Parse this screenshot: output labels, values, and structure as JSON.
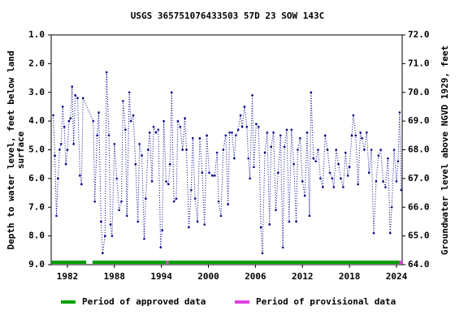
{
  "chart_data": {
    "type": "line",
    "title": "USGS 365751076433503 57D 23 SOW 143C",
    "ylabel": [
      "Depth to water level, feet below land",
      "surface"
    ],
    "y2label": "Groundwater level above NGVD 1929, feet",
    "xlim": [
      1979.93,
      2024.73
    ],
    "xticks": [
      1982,
      1988,
      1994,
      2000,
      2006,
      2012,
      2018,
      2024
    ],
    "ylim": [
      1.0,
      9.0
    ],
    "y_inverted": true,
    "yticks": [
      {
        "value": 1,
        "label": "1.0"
      },
      {
        "value": 2,
        "label": "2.0"
      },
      {
        "value": 3,
        "label": "3.0"
      },
      {
        "value": 4,
        "label": "4.0"
      },
      {
        "value": 5,
        "label": "5.0"
      },
      {
        "value": 6,
        "label": "6.0"
      },
      {
        "value": 7,
        "label": "7.0"
      },
      {
        "value": 8,
        "label": "8.0"
      },
      {
        "value": 9,
        "label": "9.0"
      }
    ],
    "y2lim": [
      64.0,
      72.0
    ],
    "y2ticks": [
      {
        "value": 64,
        "label": "64.0"
      },
      {
        "value": 65,
        "label": "65.0"
      },
      {
        "value": 66,
        "label": "66.0"
      },
      {
        "value": 67,
        "label": "67.0"
      },
      {
        "value": 68,
        "label": "68.0"
      },
      {
        "value": 69,
        "label": "69.0"
      },
      {
        "value": 70,
        "label": "70.0"
      },
      {
        "value": 71,
        "label": "71.0"
      },
      {
        "value": 72,
        "label": "72.0"
      }
    ],
    "series": [
      {
        "color": "#00008b",
        "x": [
          1980.2,
          1980.4,
          1980.6,
          1980.8,
          1981.0,
          1981.2,
          1981.4,
          1981.6,
          1981.8,
          1982.0,
          1982.2,
          1982.4,
          1982.6,
          1982.8,
          1983.0,
          1983.3,
          1983.6,
          1983.8,
          1984.0,
          1985.3,
          1985.5,
          1985.8,
          1986.0,
          1986.3,
          1986.5,
          1986.8,
          1987.0,
          1987.3,
          1987.5,
          1987.7,
          1988.0,
          1988.3,
          1988.6,
          1988.9,
          1989.1,
          1989.4,
          1989.6,
          1989.9,
          1990.1,
          1990.4,
          1990.7,
          1991.0,
          1991.2,
          1991.5,
          1991.8,
          1992.0,
          1992.3,
          1992.5,
          1992.8,
          1993.0,
          1993.3,
          1993.6,
          1993.9,
          1994.1,
          1994.3,
          1994.6,
          1994.9,
          1995.1,
          1995.3,
          1995.6,
          1995.9,
          1996.1,
          1996.4,
          1996.7,
          1997.0,
          1997.2,
          1997.5,
          1997.8,
          1998.0,
          1998.3,
          1998.6,
          1998.9,
          1999.2,
          1999.5,
          1999.8,
          2000.1,
          2000.5,
          2000.8,
          2001.1,
          2001.3,
          2001.6,
          2001.9,
          2002.2,
          2002.5,
          2002.7,
          2003.0,
          2003.3,
          2003.5,
          2003.8,
          2004.1,
          2004.3,
          2004.6,
          2004.9,
          2005.1,
          2005.3,
          2005.6,
          2005.8,
          2006.1,
          2006.4,
          2006.7,
          2006.9,
          2007.2,
          2007.5,
          2007.8,
          2008.0,
          2008.3,
          2008.6,
          2008.9,
          2009.2,
          2009.5,
          2009.7,
          2010.0,
          2010.3,
          2010.6,
          2010.9,
          2011.2,
          2011.4,
          2011.7,
          2012.0,
          2012.3,
          2012.6,
          2012.9,
          2013.1,
          2013.4,
          2013.7,
          2014.0,
          2014.3,
          2014.6,
          2014.9,
          2015.2,
          2015.5,
          2015.8,
          2016.0,
          2016.3,
          2016.6,
          2016.9,
          2017.2,
          2017.5,
          2017.8,
          2018.0,
          2018.3,
          2018.5,
          2018.8,
          2019.1,
          2019.4,
          2019.6,
          2019.9,
          2020.2,
          2020.5,
          2020.8,
          2021.1,
          2021.4,
          2021.7,
          2022.0,
          2022.3,
          2022.6,
          2022.9,
          2023.2,
          2023.4,
          2023.7,
          2024.0,
          2024.2,
          2024.4,
          2024.6
        ],
        "values": [
          3.8,
          5.2,
          7.3,
          6.0,
          5.0,
          4.8,
          3.5,
          4.2,
          5.5,
          5.0,
          4.0,
          3.9,
          2.8,
          4.8,
          3.1,
          3.2,
          5.9,
          6.2,
          3.2,
          4.0,
          6.8,
          4.5,
          3.7,
          7.5,
          8.6,
          8.0,
          2.3,
          4.5,
          7.6,
          8.0,
          4.8,
          6.0,
          7.1,
          6.8,
          3.3,
          4.3,
          7.3,
          3.0,
          4.0,
          3.8,
          5.5,
          7.5,
          4.8,
          5.2,
          8.1,
          6.7,
          5.0,
          4.4,
          6.1,
          4.2,
          4.4,
          4.3,
          8.4,
          7.8,
          4.0,
          6.1,
          6.2,
          5.5,
          3.0,
          6.8,
          6.7,
          4.0,
          4.2,
          5.0,
          3.9,
          5.0,
          7.7,
          6.4,
          4.6,
          6.7,
          7.5,
          4.6,
          5.8,
          7.6,
          4.5,
          5.8,
          5.9,
          5.9,
          5.1,
          6.8,
          7.3,
          5.0,
          4.5,
          6.9,
          4.4,
          4.4,
          5.3,
          4.5,
          4.3,
          3.8,
          4.2,
          3.5,
          4.2,
          5.3,
          6.0,
          3.1,
          5.6,
          4.1,
          4.2,
          7.7,
          8.6,
          5.1,
          4.4,
          7.6,
          4.9,
          4.4,
          7.1,
          5.8,
          4.5,
          8.4,
          4.9,
          4.3,
          7.5,
          4.3,
          5.5,
          7.5,
          5.0,
          4.6,
          6.1,
          6.6,
          4.4,
          7.3,
          3.0,
          5.3,
          5.4,
          5.0,
          6.0,
          6.3,
          4.5,
          5.0,
          5.8,
          6.0,
          6.3,
          5.0,
          5.5,
          6.0,
          6.3,
          5.1,
          5.9,
          5.6,
          4.5,
          3.8,
          4.5,
          6.2,
          4.4,
          4.6,
          5.0,
          4.4,
          5.8,
          5.0,
          7.9,
          6.1,
          5.2,
          5.0,
          6.1,
          6.3,
          5.3,
          7.9,
          7.0,
          5.0,
          6.1,
          5.4,
          3.7,
          6.4
        ]
      }
    ],
    "periods": [
      {
        "name": "Period of approved data",
        "color": "#00a000",
        "ranges": [
          [
            1979.93,
            1984.4
          ],
          [
            1985.2,
            1994.6
          ],
          [
            1994.9,
            2024.4
          ]
        ]
      },
      {
        "name": "Period of provisional data",
        "color": "#e040e0",
        "ranges": [
          [
            1994.6,
            1994.9
          ],
          [
            2024.4,
            2024.73
          ]
        ]
      }
    ]
  }
}
